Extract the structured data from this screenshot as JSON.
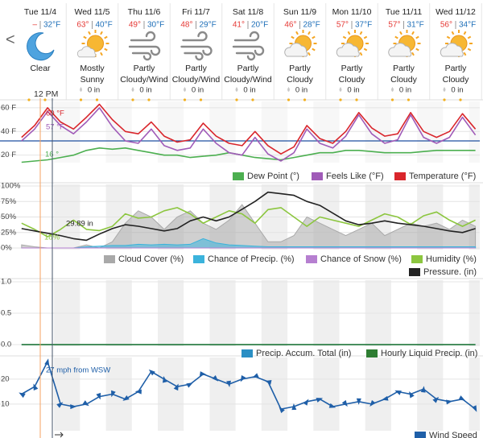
{
  "nav": {
    "prev": "<"
  },
  "days": [
    {
      "label": "Tue 11/4",
      "high": "–",
      "low": "32°F",
      "icon": "moon",
      "condition": "Clear"
    },
    {
      "label": "Wed 11/5",
      "high": "63°",
      "low": "40°F",
      "icon": "sun",
      "condition": "Mostly Sunny",
      "precip": "0 in"
    },
    {
      "label": "Thu 11/6",
      "high": "49°",
      "low": "30°F",
      "icon": "wind",
      "condition": "Partly Cloudy/Wind",
      "precip": "0 in"
    },
    {
      "label": "Fri 11/7",
      "high": "48°",
      "low": "29°F",
      "icon": "wind",
      "condition": "Partly Cloudy/Wind",
      "precip": "0 in"
    },
    {
      "label": "Sat 11/8",
      "high": "41°",
      "low": "20°F",
      "icon": "wind",
      "condition": "Partly Cloudy/Wind",
      "precip": "0 in"
    },
    {
      "label": "Sun 11/9",
      "high": "46°",
      "low": "28°F",
      "icon": "partly",
      "condition": "Partly Cloudy",
      "precip": "0 in"
    },
    {
      "label": "Mon 11/10",
      "high": "57°",
      "low": "37°F",
      "icon": "partly",
      "condition": "Partly Cloudy",
      "precip": "0 in"
    },
    {
      "label": "Tue 11/11",
      "high": "57°",
      "low": "31°F",
      "icon": "partly",
      "condition": "Partly Cloudy",
      "precip": "0 in"
    },
    {
      "label": "Wed 11/12",
      "high": "56°",
      "low": "34°F",
      "icon": "partly",
      "condition": "Partly Cloudy",
      "precip": "0 in"
    }
  ],
  "time_label": "12 PM",
  "chart_data": [
    {
      "type": "line",
      "x": [
        3,
        9,
        15,
        21,
        27,
        33,
        39,
        45,
        51,
        57,
        63,
        69,
        75,
        81,
        87,
        93,
        99,
        105,
        111,
        117,
        123,
        129,
        135,
        141,
        147,
        153,
        159,
        165,
        171,
        177,
        183,
        189,
        195,
        201,
        207,
        213
      ],
      "xlim": [
        -7,
        215
      ],
      "ylim": [
        15,
        64
      ],
      "yticks": [
        {
          "value": 60,
          "label": "60 F"
        },
        {
          "value": 40,
          "label": "40 F"
        },
        {
          "value": 20,
          "label": "20 F"
        }
      ],
      "reference_line": {
        "value": 32,
        "color": "#1f4fa0"
      },
      "grid": true,
      "series": [
        {
          "name": "Dew Point (°)",
          "color": "#4caf50",
          "values": [
            14,
            15,
            16,
            18,
            20,
            24,
            26,
            25,
            26,
            24,
            22,
            20,
            20,
            18,
            19,
            20,
            22,
            20,
            18,
            17,
            16,
            18,
            20,
            22,
            22,
            24,
            24,
            23,
            22,
            22,
            22,
            23,
            24,
            24,
            24,
            24
          ]
        },
        {
          "name": "Feels Like (°F)",
          "color": "#a05bb8",
          "values": [
            32,
            42,
            57,
            45,
            38,
            48,
            60,
            44,
            32,
            30,
            42,
            28,
            24,
            26,
            42,
            30,
            22,
            20,
            35,
            21,
            15,
            22,
            42,
            30,
            26,
            36,
            54,
            38,
            30,
            33,
            54,
            35,
            30,
            35,
            52,
            37
          ]
        },
        {
          "name": "Temperature (°F)",
          "color": "#d9262c",
          "values": [
            35,
            45,
            60,
            48,
            42,
            52,
            63,
            50,
            40,
            38,
            48,
            36,
            31,
            33,
            47,
            36,
            30,
            28,
            40,
            28,
            21,
            27,
            45,
            34,
            30,
            40,
            56,
            43,
            36,
            38,
            56,
            40,
            35,
            40,
            55,
            42
          ]
        }
      ],
      "annotations": [
        {
          "text": "60 °F",
          "color": "#d9262c"
        },
        {
          "text": "57 °F",
          "color": "#a05bb8"
        },
        {
          "text": "16 °",
          "color": "#4caf50"
        }
      ]
    },
    {
      "type": "line",
      "x": [
        3,
        9,
        15,
        21,
        27,
        33,
        39,
        45,
        51,
        57,
        63,
        69,
        75,
        81,
        87,
        93,
        99,
        105,
        111,
        117,
        123,
        129,
        135,
        141,
        147,
        153,
        159,
        165,
        171,
        177,
        183,
        189,
        195,
        201,
        207,
        213
      ],
      "xlim": [
        -7,
        215
      ],
      "ylim": [
        0,
        100
      ],
      "y2lim": [
        29.7,
        30.5
      ],
      "yticks": [
        {
          "value": 100,
          "label": "100%"
        },
        {
          "value": 75,
          "label": "75%"
        },
        {
          "value": 50,
          "label": "50%"
        },
        {
          "value": 25,
          "label": "25%"
        },
        {
          "value": 0,
          "label": "0%"
        }
      ],
      "grid": true,
      "series": [
        {
          "name": "Cloud Cover (%)",
          "color": "#a9a9a9",
          "style": "area",
          "values": [
            5,
            2,
            0,
            0,
            0,
            5,
            0,
            10,
            40,
            60,
            50,
            30,
            50,
            60,
            40,
            30,
            45,
            70,
            40,
            10,
            10,
            20,
            50,
            40,
            30,
            20,
            30,
            40,
            20,
            30,
            40,
            35,
            40,
            30,
            45,
            35
          ]
        },
        {
          "name": "Chance of Precip. (%)",
          "color": "#3bb3dc",
          "style": "area",
          "values": [
            0,
            0,
            0,
            0,
            0,
            2,
            3,
            4,
            4,
            6,
            5,
            6,
            5,
            6,
            15,
            8,
            5,
            4,
            3,
            2,
            2,
            2,
            2,
            2,
            2,
            2,
            2,
            2,
            2,
            2,
            2,
            2,
            2,
            2,
            2,
            2
          ]
        },
        {
          "name": "Chance of Snow (%)",
          "color": "#b67fd0",
          "style": "area",
          "values": [
            0,
            0,
            0,
            0,
            0,
            0,
            0,
            0,
            0,
            0,
            0,
            0,
            0,
            0,
            0,
            0,
            0,
            0,
            0,
            0,
            0,
            0,
            0,
            0,
            0,
            0,
            0,
            0,
            0,
            0,
            0,
            0,
            0,
            0,
            0,
            0
          ]
        },
        {
          "name": "Humidity (%)",
          "color": "#8cc63f",
          "values": [
            40,
            30,
            18,
            30,
            45,
            30,
            28,
            35,
            55,
            48,
            50,
            60,
            65,
            55,
            40,
            50,
            60,
            55,
            40,
            62,
            65,
            50,
            35,
            50,
            45,
            40,
            35,
            45,
            55,
            50,
            38,
            52,
            58,
            45,
            35,
            45
          ]
        },
        {
          "name": "Pressure. (in)",
          "color": "#222222",
          "axis": "y2",
          "values": [
            29.95,
            29.92,
            29.89,
            29.86,
            29.82,
            29.8,
            29.88,
            29.95,
            30.0,
            29.98,
            29.95,
            29.92,
            29.95,
            30.05,
            30.1,
            30.05,
            30.1,
            30.2,
            30.3,
            30.42,
            30.4,
            30.38,
            30.3,
            30.25,
            30.15,
            30.05,
            30.0,
            30.02,
            30.05,
            30.02,
            30.0,
            29.98,
            29.95,
            29.92,
            29.9,
            29.95
          ]
        }
      ],
      "annotations": [
        {
          "text": "29.89 in",
          "color": "#222222"
        },
        {
          "text": "18%",
          "color": "#8cc63f"
        }
      ]
    },
    {
      "type": "line",
      "x": [
        3,
        9,
        15,
        21,
        27,
        33,
        39,
        45,
        51,
        57,
        63,
        69,
        75,
        81,
        87,
        93,
        99,
        105,
        111,
        117,
        123,
        129,
        135,
        141,
        147,
        153,
        159,
        165,
        171,
        177,
        183,
        189,
        195,
        201,
        207,
        213
      ],
      "xlim": [
        -7,
        215
      ],
      "ylim": [
        0,
        1
      ],
      "yticks": [
        {
          "value": 1,
          "label": "1.0"
        },
        {
          "value": 0.5,
          "label": "0.5"
        },
        {
          "value": 0,
          "label": "0.0"
        }
      ],
      "grid": true,
      "series": [
        {
          "name": "Precip. Accum. Total (in)",
          "color": "#2a8fc4",
          "values": [
            0,
            0,
            0,
            0,
            0,
            0,
            0,
            0,
            0,
            0,
            0,
            0,
            0,
            0,
            0,
            0,
            0,
            0,
            0,
            0,
            0,
            0,
            0,
            0,
            0,
            0,
            0,
            0,
            0,
            0,
            0,
            0,
            0,
            0,
            0,
            0
          ]
        },
        {
          "name": "Hourly Liquid Precip. (in)",
          "color": "#2e7d32",
          "values": [
            0,
            0,
            0,
            0,
            0,
            0,
            0,
            0,
            0,
            0,
            0,
            0,
            0,
            0,
            0,
            0,
            0,
            0,
            0,
            0,
            0,
            0,
            0,
            0,
            0,
            0,
            0,
            0,
            0,
            0,
            0,
            0,
            0,
            0,
            0,
            0
          ]
        }
      ],
      "annotations": []
    },
    {
      "type": "line",
      "x": [
        3,
        9,
        15,
        21,
        27,
        33,
        39,
        45,
        51,
        57,
        63,
        69,
        75,
        81,
        87,
        93,
        99,
        105,
        111,
        117,
        123,
        129,
        135,
        141,
        147,
        153,
        159,
        165,
        171,
        177,
        183,
        189,
        195,
        201,
        207,
        213
      ],
      "xlim": [
        -7,
        215
      ],
      "ylim": [
        0,
        28
      ],
      "yticks": [
        20,
        10
      ],
      "grid": true,
      "series": [
        {
          "name": "Wind Speed",
          "color": "#1f5fa8",
          "markers": "arrow",
          "values": [
            14,
            17,
            27,
            10,
            9,
            10,
            13,
            14,
            12,
            15,
            23,
            20,
            17,
            18,
            22,
            20,
            18,
            20,
            21,
            19,
            8,
            9,
            11,
            12,
            9,
            10,
            11,
            10,
            12,
            15,
            14,
            16,
            12,
            11,
            12,
            8
          ]
        }
      ],
      "annotations": [
        {
          "text": "27 mph from WSW",
          "color": "#1f5fa8"
        }
      ]
    }
  ]
}
